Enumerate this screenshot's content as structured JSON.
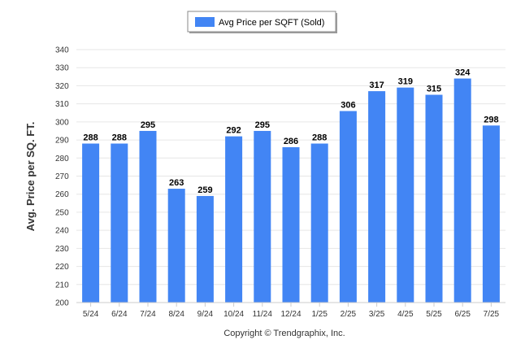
{
  "chart_data": {
    "type": "bar",
    "categories": [
      "5/24",
      "6/24",
      "7/24",
      "8/24",
      "9/24",
      "10/24",
      "11/24",
      "12/24",
      "1/25",
      "2/25",
      "3/25",
      "4/25",
      "5/25",
      "6/25",
      "7/25"
    ],
    "series": [
      {
        "name": "Avg Price per SQFT (Sold)",
        "values": [
          288,
          288,
          295,
          263,
          259,
          292,
          295,
          286,
          288,
          306,
          317,
          319,
          315,
          324,
          298
        ],
        "color": "#4285f4"
      }
    ],
    "ylabel": "Avg. Price per SQ. FT.",
    "xlabel": "",
    "ylim": [
      200,
      340
    ],
    "yticks": [
      200,
      210,
      220,
      230,
      240,
      250,
      260,
      270,
      280,
      290,
      300,
      310,
      320,
      330,
      340
    ],
    "grid": true,
    "legend": "top-center",
    "data_labels": true
  },
  "credit": "Copyright © Trendgraphix, Inc.",
  "colors": {
    "bar": "#4285f4",
    "grid": "#e6e6e6",
    "axis": "#cccccc"
  }
}
